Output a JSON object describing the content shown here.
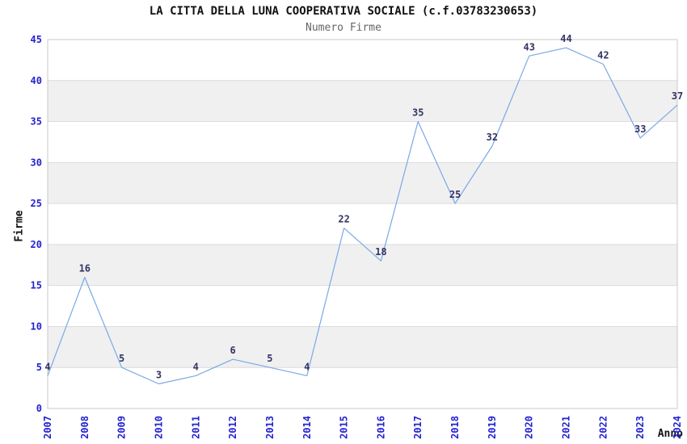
{
  "chart_data": {
    "type": "line",
    "title": "LA CITTA DELLA LUNA COOPERATIVA SOCIALE (c.f.03783230653)",
    "subtitle": "Numero Firme",
    "xlabel": "Anno",
    "ylabel": "Firme",
    "categories": [
      "2007",
      "2008",
      "2009",
      "2010",
      "2011",
      "2012",
      "2013",
      "2014",
      "2015",
      "2016",
      "2017",
      "2018",
      "2019",
      "2020",
      "2021",
      "2022",
      "2023",
      "2024"
    ],
    "series": [
      {
        "name": "Numero Firme",
        "values": [
          4,
          16,
          5,
          3,
          4,
          6,
          5,
          4,
          22,
          18,
          35,
          25,
          32,
          43,
          44,
          42,
          33,
          37
        ]
      }
    ],
    "ylim": [
      0,
      45
    ],
    "ytick_step": 5,
    "grid": true,
    "legend": false,
    "band_fill_alternating": true,
    "colors": {
      "line": "#79a9e5",
      "tick_label": "#2323d1",
      "data_label": "#333366",
      "band": "#f0f0f0",
      "gridline": "#dcdcdc",
      "border": "#c8c8c8",
      "title": "#111111",
      "subtitle": "#666666",
      "axis_label": "#111111",
      "background": "#ffffff"
    }
  }
}
